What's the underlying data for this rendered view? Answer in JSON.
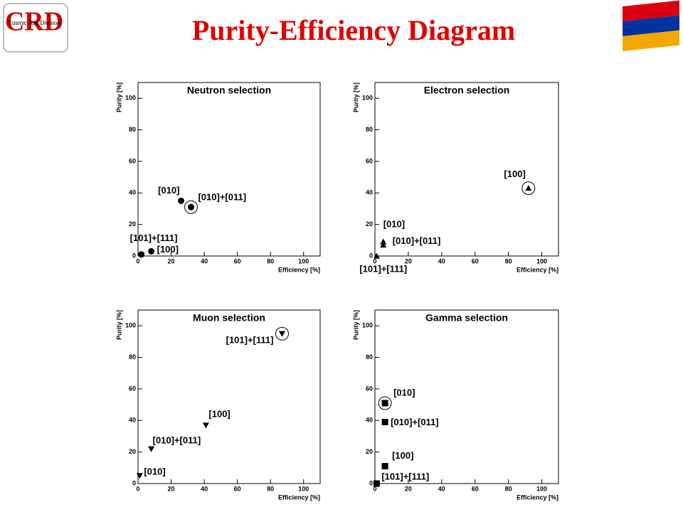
{
  "title": "Purity-Efficiency Diagram",
  "logo": {
    "letters": "CRD",
    "text": "Cosmic Ray Division"
  },
  "chart_data": [
    {
      "type": "scatter",
      "title": "Neutron selection",
      "xlabel": "Efficiency [%]",
      "ylabel": "Purity [%]",
      "x": [
        26,
        32,
        2,
        8
      ],
      "values": [
        35,
        31,
        1,
        3
      ],
      "point_labels": [
        "[010]",
        "[010]+[011]",
        "[101]+[111]",
        "[100]"
      ],
      "marker": "circle",
      "highlighted": 1,
      "color": "#000000",
      "xlim": [
        0,
        110
      ],
      "ylim": [
        0,
        110
      ],
      "xticks": [
        0,
        20,
        40,
        60,
        80,
        100
      ],
      "yticks": [
        0,
        20,
        40,
        60,
        80,
        100
      ]
    },
    {
      "type": "scatter",
      "title": "Electron selection",
      "xlabel": "Efficiency [%]",
      "ylabel": "Purity [%]",
      "x": [
        92,
        5,
        5,
        1
      ],
      "values": [
        43,
        9,
        7,
        0
      ],
      "point_labels": [
        "[100]",
        "[010]",
        "[010]+[011]",
        "[101]+[111]"
      ],
      "marker": "triangle-up",
      "highlighted": 0,
      "color": "#000000",
      "xlim": [
        0,
        110
      ],
      "ylim": [
        0,
        110
      ],
      "xticks": [
        0,
        20,
        40,
        60,
        80,
        100
      ],
      "yticks": [
        0,
        20,
        40,
        60,
        80,
        100
      ]
    },
    {
      "type": "scatter",
      "title": "Muon selection",
      "xlabel": "Efficiency [%]",
      "ylabel": "Purity [%]",
      "x": [
        87,
        41,
        8,
        1
      ],
      "values": [
        95,
        37,
        22,
        5
      ],
      "point_labels": [
        "[101]+[111]",
        "[100]",
        "[010]+[011]",
        "[010]"
      ],
      "marker": "triangle-down",
      "highlighted": 0,
      "color": "#000000",
      "xlim": [
        0,
        110
      ],
      "ylim": [
        0,
        110
      ],
      "xticks": [
        0,
        20,
        40,
        60,
        80,
        100
      ],
      "yticks": [
        0,
        20,
        40,
        60,
        80,
        100
      ]
    },
    {
      "type": "scatter",
      "title": "Gamma selection",
      "xlabel": "Efficiency [%]",
      "ylabel": "Purity [%]",
      "x": [
        6,
        6,
        6,
        1
      ],
      "values": [
        51,
        39,
        11,
        0
      ],
      "point_labels": [
        "[010]",
        "[010]+[011]",
        "[100]",
        "[101]+[111]"
      ],
      "marker": "square",
      "highlighted": 0,
      "color": "#000000",
      "xlim": [
        0,
        110
      ],
      "ylim": [
        0,
        110
      ],
      "xticks": [
        0,
        20,
        40,
        60,
        80,
        100
      ],
      "yticks": [
        0,
        20,
        40,
        60,
        80,
        100
      ]
    }
  ]
}
